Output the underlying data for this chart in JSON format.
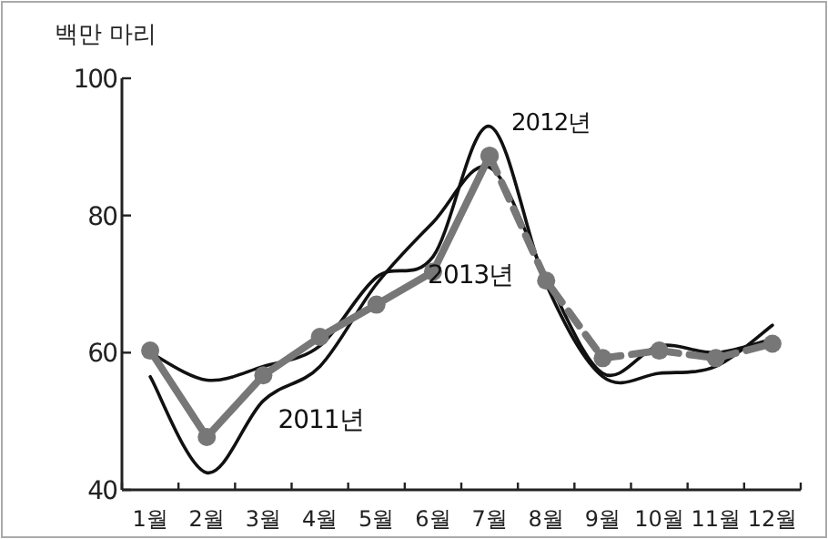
{
  "chart_data": {
    "type": "line",
    "ylabel": "백만 마리",
    "categories": [
      "1월",
      "2월",
      "3월",
      "4월",
      "5월",
      "6월",
      "7월",
      "8월",
      "9월",
      "10월",
      "11월",
      "12월"
    ],
    "ylim": [
      40,
      100
    ],
    "yticks": [
      40,
      60,
      80,
      100
    ],
    "grid": false,
    "series": [
      {
        "name": "2011년",
        "color": "#111111",
        "marker": "none",
        "line_style": "solid",
        "values": [
          56.5,
          42.5,
          53,
          58,
          70,
          79,
          87,
          71,
          57,
          61,
          60,
          62
        ]
      },
      {
        "name": "2012년",
        "color": "#111111",
        "marker": "none",
        "line_style": "solid",
        "values": [
          60,
          56,
          58,
          61,
          71,
          74,
          93,
          70,
          56.5,
          57,
          58,
          64
        ]
      },
      {
        "name": "2013년",
        "color": "#777777",
        "marker": "circle",
        "line_style": "solid",
        "values": [
          60.3,
          47.7,
          56.7,
          62.3,
          67,
          71.8,
          88.7,
          null,
          null,
          null,
          null,
          null
        ]
      },
      {
        "color": "#777777",
        "marker": "circle",
        "line_style": "dashed",
        "values": [
          null,
          null,
          null,
          null,
          null,
          null,
          88.7,
          70.5,
          59.2,
          60.3,
          59.2,
          61.3
        ]
      }
    ]
  }
}
